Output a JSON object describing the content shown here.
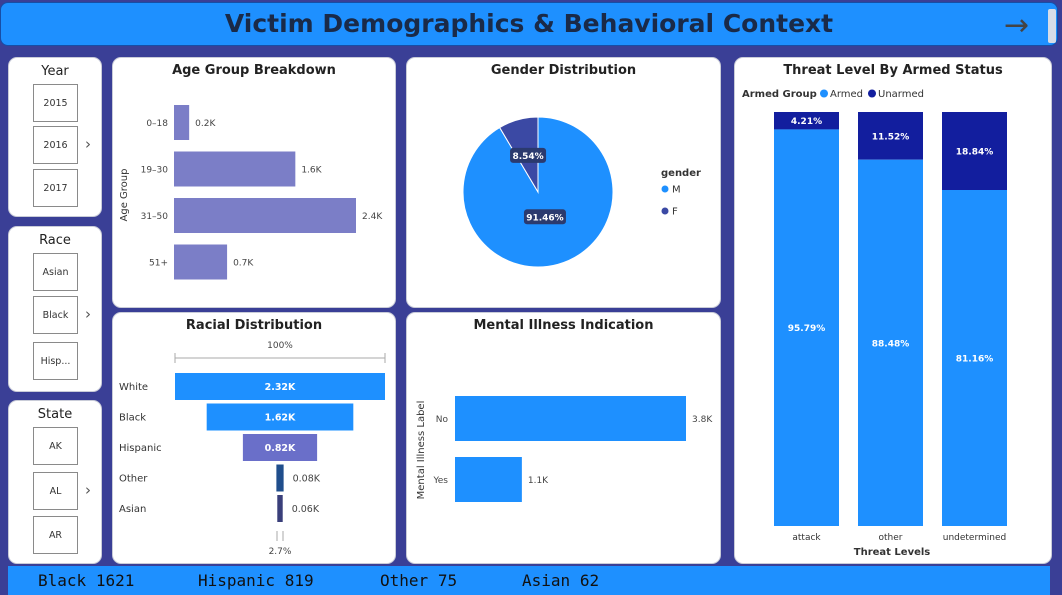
{
  "header": {
    "title": "Victim Demographics & Behavioral Context"
  },
  "slicers": {
    "year": {
      "title": "Year",
      "items": [
        "2015",
        "2016",
        "2017"
      ]
    },
    "race": {
      "title": "Race",
      "items": [
        "Asian",
        "Black",
        "Hisp..."
      ]
    },
    "state": {
      "title": "State",
      "items": [
        "AK",
        "AL",
        "AR"
      ]
    }
  },
  "icons": {
    "nav": "arrow-right-icon",
    "chevron": "chevron-right-icon"
  },
  "colors": {
    "brand": "#1e90ff",
    "age_bar": "#7b7ec7",
    "unarmed": "#121e9e",
    "female": "#3b49a4",
    "background": "#3a3f96"
  },
  "ticker": [
    {
      "label": "Black",
      "value": "1621"
    },
    {
      "label": "Hispanic",
      "value": "819"
    },
    {
      "label": "Other",
      "value": "75"
    },
    {
      "label": "Asian",
      "value": "62"
    }
  ],
  "chart_data": [
    {
      "id": "age",
      "type": "bar",
      "orientation": "horizontal",
      "title": "Age Group Breakdown",
      "ylabel": "Age Group",
      "categories": [
        "0–18",
        "19–30",
        "31–50",
        "51+"
      ],
      "values": [
        0.2,
        1.6,
        2.4,
        0.7
      ],
      "value_labels": [
        "0.2K",
        "1.6K",
        "2.4K",
        "0.7K"
      ],
      "xlim": [
        0,
        2.4
      ]
    },
    {
      "id": "gender",
      "type": "pie",
      "title": "Gender Distribution",
      "legend_title": "gender",
      "legend_position": "right",
      "slices": [
        {
          "name": "M",
          "value": 91.46,
          "label": "91.46%",
          "color": "#1e90ff"
        },
        {
          "name": "F",
          "value": 8.54,
          "label": "8.54%",
          "color": "#3b49a4"
        }
      ]
    },
    {
      "id": "threat",
      "type": "bar",
      "stacked": true,
      "title": "Threat Level By Armed Status",
      "legend_title": "Armed Group",
      "legend_position": "top-left",
      "xlabel": "Threat Levels",
      "categories": [
        "attack",
        "other",
        "undetermined"
      ],
      "series": [
        {
          "name": "Armed",
          "color": "#1e90ff",
          "values": [
            95.79,
            88.48,
            81.16
          ],
          "labels": [
            "95.79%",
            "88.48%",
            "81.16%"
          ]
        },
        {
          "name": "Unarmed",
          "color": "#121e9e",
          "values": [
            4.21,
            11.52,
            18.84
          ],
          "labels": [
            "4.21%",
            "11.52%",
            "18.84%"
          ]
        }
      ],
      "ylim": [
        0,
        100
      ]
    },
    {
      "id": "race",
      "type": "bar",
      "subtype": "funnel",
      "title": "Racial Distribution",
      "top_label": "100%",
      "bottom_label": "2.7%",
      "categories": [
        "White",
        "Black",
        "Hispanic",
        "Other",
        "Asian"
      ],
      "values": [
        2.32,
        1.62,
        0.82,
        0.08,
        0.06
      ],
      "value_labels": [
        "2.32K",
        "1.62K",
        "0.82K",
        "0.08K",
        "0.06K"
      ],
      "colors": [
        "#1e90ff",
        "#1e90ff",
        "#6a6fc9",
        "#1f4e8c",
        "#3a3f7a"
      ]
    },
    {
      "id": "mental",
      "type": "bar",
      "orientation": "horizontal",
      "title": "Mental Illness Indication",
      "ylabel": "Mental Illness Label",
      "categories": [
        "No",
        "Yes"
      ],
      "values": [
        3.8,
        1.1
      ],
      "value_labels": [
        "3.8K",
        "1.1K"
      ],
      "xlim": [
        0,
        3.8
      ]
    }
  ]
}
